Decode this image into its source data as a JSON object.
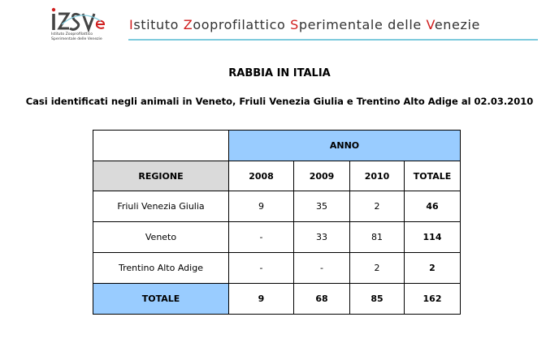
{
  "header": {
    "logo_text": "izsve",
    "logo_line1": "Istituto Zooprofilattico",
    "logo_line2": "Sperimentale delle Venezie",
    "institute_parts": [
      {
        "text": "I",
        "hl": true
      },
      {
        "text": "stituto ",
        "hl": false
      },
      {
        "text": "Z",
        "hl": true
      },
      {
        "text": "ooprofilattico ",
        "hl": false
      },
      {
        "text": "S",
        "hl": true
      },
      {
        "text": "perimentale delle ",
        "hl": false
      },
      {
        "text": "V",
        "hl": true
      },
      {
        "text": "enezie",
        "hl": false
      }
    ],
    "accent_color": "#d01e1e",
    "line_color": "#7ecbdd"
  },
  "title": "RABBIA IN ITALIA",
  "subtitle": "Casi identificati negli animali in Veneto, Friuli Venezia Giulia e Trentino Alto Adige al 02.03.2010",
  "table": {
    "group_header": "ANNO",
    "columns": [
      "REGIONE",
      "2008",
      "2009",
      "2010",
      "TOTALE"
    ],
    "rows": [
      {
        "region": "Friuli Venezia Giulia",
        "y2008": "9",
        "y2009": "35",
        "y2010": "2",
        "total": "46"
      },
      {
        "region": "Veneto",
        "y2008": "-",
        "y2009": "33",
        "y2010": "81",
        "total": "114"
      },
      {
        "region": "Trentino Alto Adige",
        "y2008": "-",
        "y2009": "-",
        "y2010": "2",
        "total": "2"
      }
    ],
    "totals": {
      "label": "TOTALE",
      "y2008": "9",
      "y2009": "68",
      "y2010": "85",
      "total": "162"
    },
    "header_fill": "#99ccff",
    "column_header_fill": "#dadada"
  }
}
